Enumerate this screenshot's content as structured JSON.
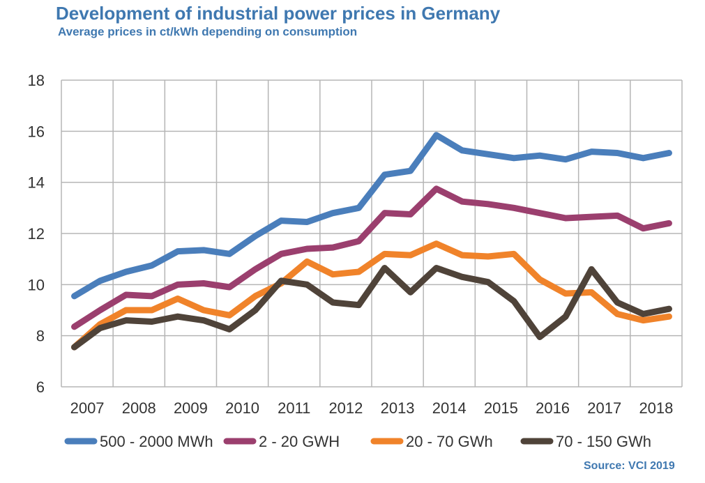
{
  "title": "Development of industrial power prices in Germany",
  "subtitle": "Average prices in ct/kWh depending on consumption",
  "source": "Source: VCI 2019",
  "chart_data": {
    "type": "line",
    "title": "Development of industrial power prices in Germany",
    "subtitle": "Average prices in ct/kWh depending on consumption",
    "xlabel": "",
    "ylabel": "",
    "ylim": [
      6,
      18
    ],
    "yticks": [
      "6",
      "8",
      "10",
      "12",
      "14",
      "16",
      "18"
    ],
    "year_labels": [
      "2007",
      "2008",
      "2009",
      "2010",
      "2011",
      "2012",
      "2013",
      "2014",
      "2015",
      "2016",
      "2017",
      "2018"
    ],
    "points_per_year": 2,
    "grid": true,
    "legend_placement": "bottom",
    "series": [
      {
        "name": "500 - 2000 MWh",
        "color": "#4a7ebb",
        "values": [
          9.55,
          10.15,
          10.5,
          10.75,
          11.3,
          11.35,
          11.2,
          11.9,
          12.5,
          12.45,
          12.8,
          13.0,
          14.3,
          14.45,
          15.85,
          15.25,
          15.1,
          14.95,
          15.05,
          14.9,
          15.2,
          15.15,
          14.95,
          15.15
        ]
      },
      {
        "name": "2 - 20 GWH",
        "color": "#9b3f6e",
        "values": [
          8.35,
          9.0,
          9.6,
          9.55,
          10.0,
          10.05,
          9.9,
          10.6,
          11.2,
          11.4,
          11.45,
          11.7,
          12.8,
          12.75,
          13.75,
          13.25,
          13.15,
          13.0,
          12.8,
          12.6,
          12.65,
          12.7,
          12.2,
          12.4
        ]
      },
      {
        "name": "20 - 70 GWh",
        "color": "#f0832a",
        "values": [
          7.55,
          8.45,
          9.0,
          9.0,
          9.45,
          9.0,
          8.8,
          9.55,
          10.05,
          10.9,
          10.4,
          10.5,
          11.2,
          11.15,
          11.6,
          11.15,
          11.1,
          11.2,
          10.2,
          9.65,
          9.7,
          8.85,
          8.6,
          8.75
        ]
      },
      {
        "name": "70 - 150 GWh",
        "color": "#4f4339",
        "values": [
          7.55,
          8.3,
          8.6,
          8.55,
          8.75,
          8.6,
          8.25,
          9.0,
          10.15,
          10.0,
          9.3,
          9.2,
          10.65,
          9.7,
          10.65,
          10.3,
          10.1,
          9.35,
          7.95,
          8.75,
          10.6,
          9.3,
          8.85,
          9.05
        ]
      }
    ]
  }
}
